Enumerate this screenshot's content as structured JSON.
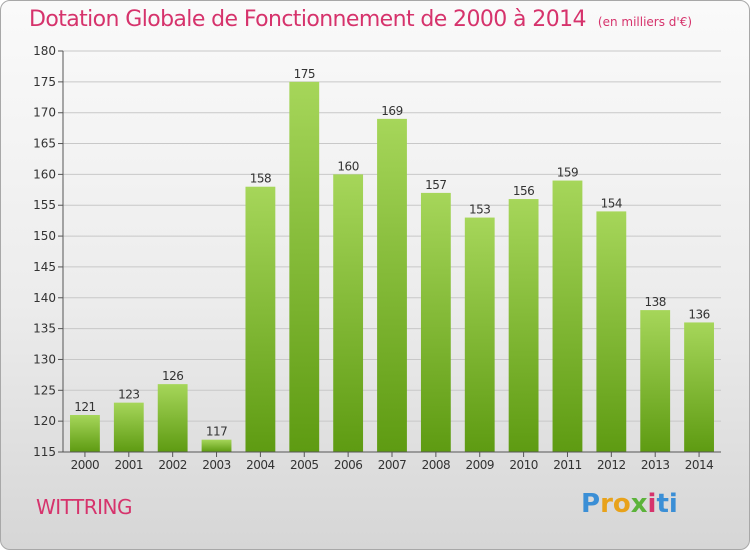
{
  "header": {
    "title": "Dotation Globale de Fonctionnement de 2000 à 2014",
    "unit": "(en milliers d'€)"
  },
  "footer": {
    "place": "WITTRING",
    "logo": [
      "P",
      "r",
      "o",
      "x",
      "i",
      "t",
      "i"
    ]
  },
  "colors": {
    "accent": "#d6336c",
    "bar_light": "#a6d65a",
    "bar_dark": "#5e9b12",
    "grid": "#c8c8c8"
  },
  "chart_data": {
    "type": "bar",
    "title": "Dotation Globale de Fonctionnement de 2000 à 2014",
    "subtitle": "(en milliers d'€)",
    "xlabel": "",
    "ylabel": "",
    "categories": [
      "2000",
      "2001",
      "2002",
      "2003",
      "2004",
      "2005",
      "2006",
      "2007",
      "2008",
      "2009",
      "2010",
      "2011",
      "2012",
      "2013",
      "2014"
    ],
    "values": [
      121,
      123,
      126,
      117,
      158,
      175,
      160,
      169,
      157,
      153,
      156,
      159,
      154,
      138,
      136
    ],
    "ylim": [
      115,
      180
    ],
    "yticks": [
      115,
      120,
      125,
      130,
      135,
      140,
      145,
      150,
      155,
      160,
      165,
      170,
      175,
      180
    ],
    "grid": true,
    "legend": "none"
  }
}
